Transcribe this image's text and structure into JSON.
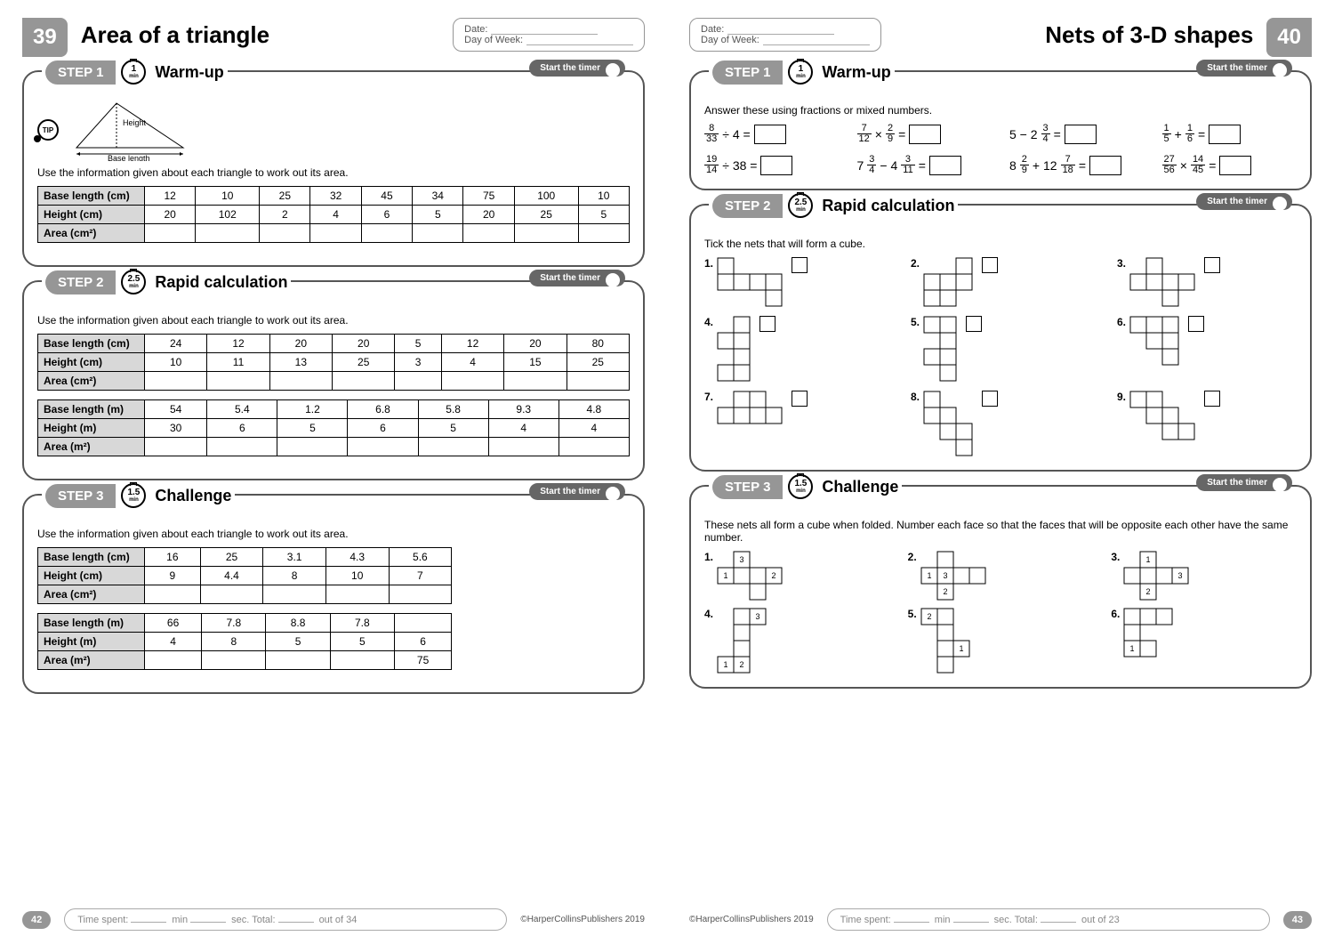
{
  "left": {
    "pageTab": "39",
    "title": "Area of a triangle",
    "dateLabel": "Date:",
    "dayLabel": "Day of Week:",
    "footerPage": "42",
    "timeSpent": "Time spent:",
    "minLabel": "min",
    "secLabel": "sec. Total:",
    "outOf": "out of 34",
    "publisher": "©HarperCollinsPublishers 2019",
    "timerLabel": "Start the timer",
    "step1": {
      "stepLabel": "STEP 1",
      "time": "1",
      "timeUnit": "min",
      "title": "Warm-up",
      "heightLabel": "Height",
      "baseLabel": "Base length",
      "instruction": "Use the information given about each triangle to work out its area.",
      "rows": [
        {
          "header": "Base length (cm)",
          "vals": [
            "12",
            "10",
            "25",
            "32",
            "45",
            "34",
            "75",
            "100",
            "10"
          ]
        },
        {
          "header": "Height (cm)",
          "vals": [
            "20",
            "102",
            "2",
            "4",
            "6",
            "5",
            "20",
            "25",
            "5"
          ]
        },
        {
          "header": "Area (cm²)",
          "vals": [
            "",
            "",
            "",
            "",
            "",
            "",
            "",
            "",
            ""
          ]
        }
      ]
    },
    "step2": {
      "stepLabel": "STEP 2",
      "time": "2.5",
      "timeUnit": "min",
      "title": "Rapid calculation",
      "instruction": "Use the information given about each triangle to work out its area.",
      "table1": [
        {
          "header": "Base length (cm)",
          "vals": [
            "24",
            "12",
            "20",
            "20",
            "5",
            "12",
            "20",
            "80"
          ]
        },
        {
          "header": "Height (cm)",
          "vals": [
            "10",
            "11",
            "13",
            "25",
            "3",
            "4",
            "15",
            "25"
          ]
        },
        {
          "header": "Area (cm²)",
          "vals": [
            "",
            "",
            "",
            "",
            "",
            "",
            "",
            ""
          ]
        }
      ],
      "table2": [
        {
          "header": "Base length (m)",
          "vals": [
            "54",
            "5.4",
            "1.2",
            "6.8",
            "5.8",
            "9.3",
            "4.8"
          ]
        },
        {
          "header": "Height (m)",
          "vals": [
            "30",
            "6",
            "5",
            "6",
            "5",
            "4",
            "4"
          ]
        },
        {
          "header": "Area (m²)",
          "vals": [
            "",
            "",
            "",
            "",
            "",
            "",
            ""
          ]
        }
      ]
    },
    "step3": {
      "stepLabel": "STEP 3",
      "time": "1.5",
      "timeUnit": "min",
      "title": "Challenge",
      "instruction": "Use the information given about each triangle to work out its area.",
      "table1": [
        {
          "header": "Base length (cm)",
          "vals": [
            "16",
            "25",
            "3.1",
            "4.3",
            "5.6"
          ]
        },
        {
          "header": "Height (cm)",
          "vals": [
            "9",
            "4.4",
            "8",
            "10",
            "7"
          ]
        },
        {
          "header": "Area (cm²)",
          "vals": [
            "",
            "",
            "",
            "",
            ""
          ]
        }
      ],
      "table2": [
        {
          "header": "Base length (m)",
          "vals": [
            "66",
            "7.8",
            "8.8",
            "7.8",
            ""
          ]
        },
        {
          "header": "Height (m)",
          "vals": [
            "4",
            "8",
            "5",
            "5",
            "6"
          ]
        },
        {
          "header": "Area (m²)",
          "vals": [
            "",
            "",
            "",
            "",
            "75"
          ]
        }
      ]
    }
  },
  "right": {
    "pageTab": "40",
    "title": "Nets of 3-D shapes",
    "dateLabel": "Date:",
    "dayLabel": "Day of Week:",
    "footerPage": "43",
    "timeSpent": "Time spent:",
    "minLabel": "min",
    "secLabel": "sec. Total:",
    "outOf": "out of 23",
    "publisher": "©HarperCollinsPublishers 2019",
    "timerLabel": "Start the timer",
    "step1": {
      "stepLabel": "STEP 1",
      "time": "1",
      "timeUnit": "min",
      "title": "Warm-up",
      "instruction": "Answer these using fractions or mixed numbers.",
      "problems": [
        {
          "html": "<span class='frac'><span class='num'>8</span><span class='den'>33</span></span> ÷ 4 ="
        },
        {
          "html": "<span class='frac'><span class='num'>7</span><span class='den'>12</span></span> × <span class='frac'><span class='num'>2</span><span class='den'>9</span></span> ="
        },
        {
          "html": "5 − 2<span class='frac'><span class='num'>3</span><span class='den'>4</span></span> ="
        },
        {
          "html": "<span class='frac'><span class='num'>1</span><span class='den'>5</span></span> + <span class='frac'><span class='num'>1</span><span class='den'>6</span></span> ="
        },
        {
          "html": "<span class='frac'><span class='num'>19</span><span class='den'>14</span></span> ÷ 38 ="
        },
        {
          "html": "7<span class='frac'><span class='num'>3</span><span class='den'>4</span></span> − 4<span class='frac'><span class='num'>3</span><span class='den'>11</span></span> ="
        },
        {
          "html": "8<span class='frac'><span class='num'>2</span><span class='den'>9</span></span> + 12<span class='frac'><span class='num'>7</span><span class='den'>18</span></span> ="
        },
        {
          "html": "<span class='frac'><span class='num'>27</span><span class='den'>56</span></span> × <span class='frac'><span class='num'>14</span><span class='den'>45</span></span> ="
        }
      ]
    },
    "step2": {
      "stepLabel": "STEP 2",
      "time": "2.5",
      "timeUnit": "min",
      "title": "Rapid calculation",
      "instruction": "Tick the nets that will form a cube.",
      "nets": [
        {
          "label": "1.",
          "cells": [
            [
              0,
              0
            ],
            [
              0,
              1
            ],
            [
              1,
              1
            ],
            [
              2,
              1
            ],
            [
              3,
              1
            ],
            [
              3,
              2
            ]
          ],
          "check": true
        },
        {
          "label": "2.",
          "cells": [
            [
              2,
              0
            ],
            [
              2,
              1
            ],
            [
              1,
              1
            ],
            [
              0,
              1
            ],
            [
              0,
              2
            ],
            [
              1,
              2
            ]
          ],
          "check": true
        },
        {
          "label": "3.",
          "cells": [
            [
              1,
              0
            ],
            [
              0,
              1
            ],
            [
              1,
              1
            ],
            [
              2,
              1
            ],
            [
              3,
              1
            ],
            [
              2,
              2
            ]
          ],
          "check": true
        },
        {
          "label": "4.",
          "cells": [
            [
              1,
              0
            ],
            [
              0,
              1
            ],
            [
              1,
              1
            ],
            [
              1,
              2
            ],
            [
              0,
              3
            ],
            [
              1,
              3
            ]
          ],
          "check": true
        },
        {
          "label": "5.",
          "cells": [
            [
              0,
              0
            ],
            [
              1,
              0
            ],
            [
              1,
              1
            ],
            [
              0,
              2
            ],
            [
              1,
              2
            ],
            [
              1,
              3
            ]
          ],
          "check": true
        },
        {
          "label": "6.",
          "cells": [
            [
              0,
              0
            ],
            [
              1,
              0
            ],
            [
              2,
              0
            ],
            [
              1,
              1
            ],
            [
              2,
              1
            ],
            [
              2,
              2
            ]
          ],
          "check": true
        },
        {
          "label": "7.",
          "cells": [
            [
              1,
              0
            ],
            [
              2,
              0
            ],
            [
              0,
              1
            ],
            [
              1,
              1
            ],
            [
              2,
              1
            ],
            [
              3,
              1
            ]
          ],
          "check": true
        },
        {
          "label": "8.",
          "cells": [
            [
              0,
              0
            ],
            [
              0,
              1
            ],
            [
              1,
              1
            ],
            [
              1,
              2
            ],
            [
              2,
              2
            ],
            [
              2,
              3
            ]
          ],
          "check": true
        },
        {
          "label": "9.",
          "cells": [
            [
              0,
              0
            ],
            [
              1,
              0
            ],
            [
              1,
              1
            ],
            [
              2,
              1
            ],
            [
              2,
              2
            ],
            [
              3,
              2
            ]
          ],
          "check": true
        }
      ]
    },
    "step3": {
      "stepLabel": "STEP 3",
      "time": "1.5",
      "timeUnit": "min",
      "title": "Challenge",
      "instruction": "These nets all form a cube when folded. Number each face so that the faces that will be opposite each other have the same number.",
      "nets": [
        {
          "label": "1.",
          "cells": [
            [
              1,
              0,
              "3"
            ],
            [
              0,
              1,
              "1"
            ],
            [
              1,
              1,
              ""
            ],
            [
              2,
              1,
              ""
            ],
            [
              3,
              1,
              "2"
            ],
            [
              2,
              2,
              ""
            ]
          ]
        },
        {
          "label": "2.",
          "cells": [
            [
              1,
              0,
              ""
            ],
            [
              0,
              1,
              "1"
            ],
            [
              1,
              1,
              "3"
            ],
            [
              2,
              1,
              ""
            ],
            [
              3,
              1,
              ""
            ],
            [
              1,
              2,
              "2"
            ]
          ]
        },
        {
          "label": "3.",
          "cells": [
            [
              1,
              0,
              "1"
            ],
            [
              0,
              1,
              ""
            ],
            [
              1,
              1,
              ""
            ],
            [
              2,
              1,
              ""
            ],
            [
              3,
              1,
              "3"
            ],
            [
              1,
              2,
              "2"
            ]
          ]
        },
        {
          "label": "4.",
          "cells": [
            [
              1,
              0,
              ""
            ],
            [
              2,
              0,
              "3"
            ],
            [
              1,
              1,
              ""
            ],
            [
              1,
              2,
              ""
            ],
            [
              0,
              3,
              "1"
            ],
            [
              1,
              3,
              "2"
            ]
          ]
        },
        {
          "label": "5.",
          "cells": [
            [
              0,
              0,
              "2"
            ],
            [
              1,
              0,
              ""
            ],
            [
              1,
              1,
              ""
            ],
            [
              1,
              2,
              ""
            ],
            [
              2,
              2,
              "1"
            ],
            [
              1,
              3,
              ""
            ]
          ]
        },
        {
          "label": "6.",
          "cells": [
            [
              0,
              0,
              ""
            ],
            [
              1,
              0,
              ""
            ],
            [
              2,
              0,
              ""
            ],
            [
              0,
              1,
              ""
            ],
            [
              0,
              2,
              "1"
            ],
            [
              1,
              2,
              ""
            ]
          ]
        }
      ]
    }
  }
}
